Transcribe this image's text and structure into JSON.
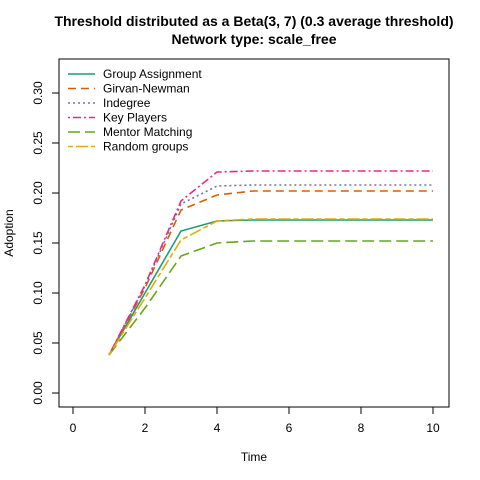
{
  "chart_data": {
    "type": "line",
    "title": "Threshold distributed as a Beta(3, 7) (0.3 average threshold)",
    "subtitle": "Network type: scale_free",
    "xlabel": "Time",
    "ylabel": "Adoption",
    "xlim": [
      0,
      10
    ],
    "ylim": [
      0,
      0.3
    ],
    "x_ticks": [
      "0",
      "2",
      "4",
      "6",
      "8",
      "10"
    ],
    "y_ticks": [
      "0.00",
      "0.05",
      "0.10",
      "0.15",
      "0.20",
      "0.25",
      "0.30"
    ],
    "legend_position": "top-left",
    "grid": false,
    "x": [
      1,
      2,
      3,
      4,
      5,
      6,
      7,
      8,
      9,
      10
    ],
    "series": [
      {
        "name": "Group Assignment",
        "color": "#1B9E77",
        "dash": "solid",
        "values": [
          0.038,
          0.1,
          0.162,
          0.172,
          0.173,
          0.173,
          0.173,
          0.173,
          0.173,
          0.173
        ]
      },
      {
        "name": "Girvan-Newman",
        "color": "#D95F02",
        "dash": "dashed",
        "values": [
          0.038,
          0.105,
          0.183,
          0.198,
          0.202,
          0.202,
          0.202,
          0.202,
          0.202,
          0.202
        ]
      },
      {
        "name": "Indegree",
        "color": "#7570B3",
        "dash": "dotted",
        "values": [
          0.038,
          0.107,
          0.189,
          0.207,
          0.208,
          0.208,
          0.208,
          0.208,
          0.208,
          0.208
        ]
      },
      {
        "name": "Key Players",
        "color": "#E7298A",
        "dash": "dotdash",
        "values": [
          0.038,
          0.108,
          0.192,
          0.221,
          0.222,
          0.222,
          0.222,
          0.222,
          0.222,
          0.222
        ]
      },
      {
        "name": "Mentor Matching",
        "color": "#66A61E",
        "dash": "longdash",
        "values": [
          0.038,
          0.085,
          0.137,
          0.15,
          0.152,
          0.152,
          0.152,
          0.152,
          0.152,
          0.152
        ]
      },
      {
        "name": "Random groups",
        "color": "#E6AB02",
        "dash": "twodash",
        "values": [
          0.038,
          0.095,
          0.153,
          0.172,
          0.174,
          0.174,
          0.174,
          0.174,
          0.174,
          0.174
        ]
      }
    ]
  }
}
